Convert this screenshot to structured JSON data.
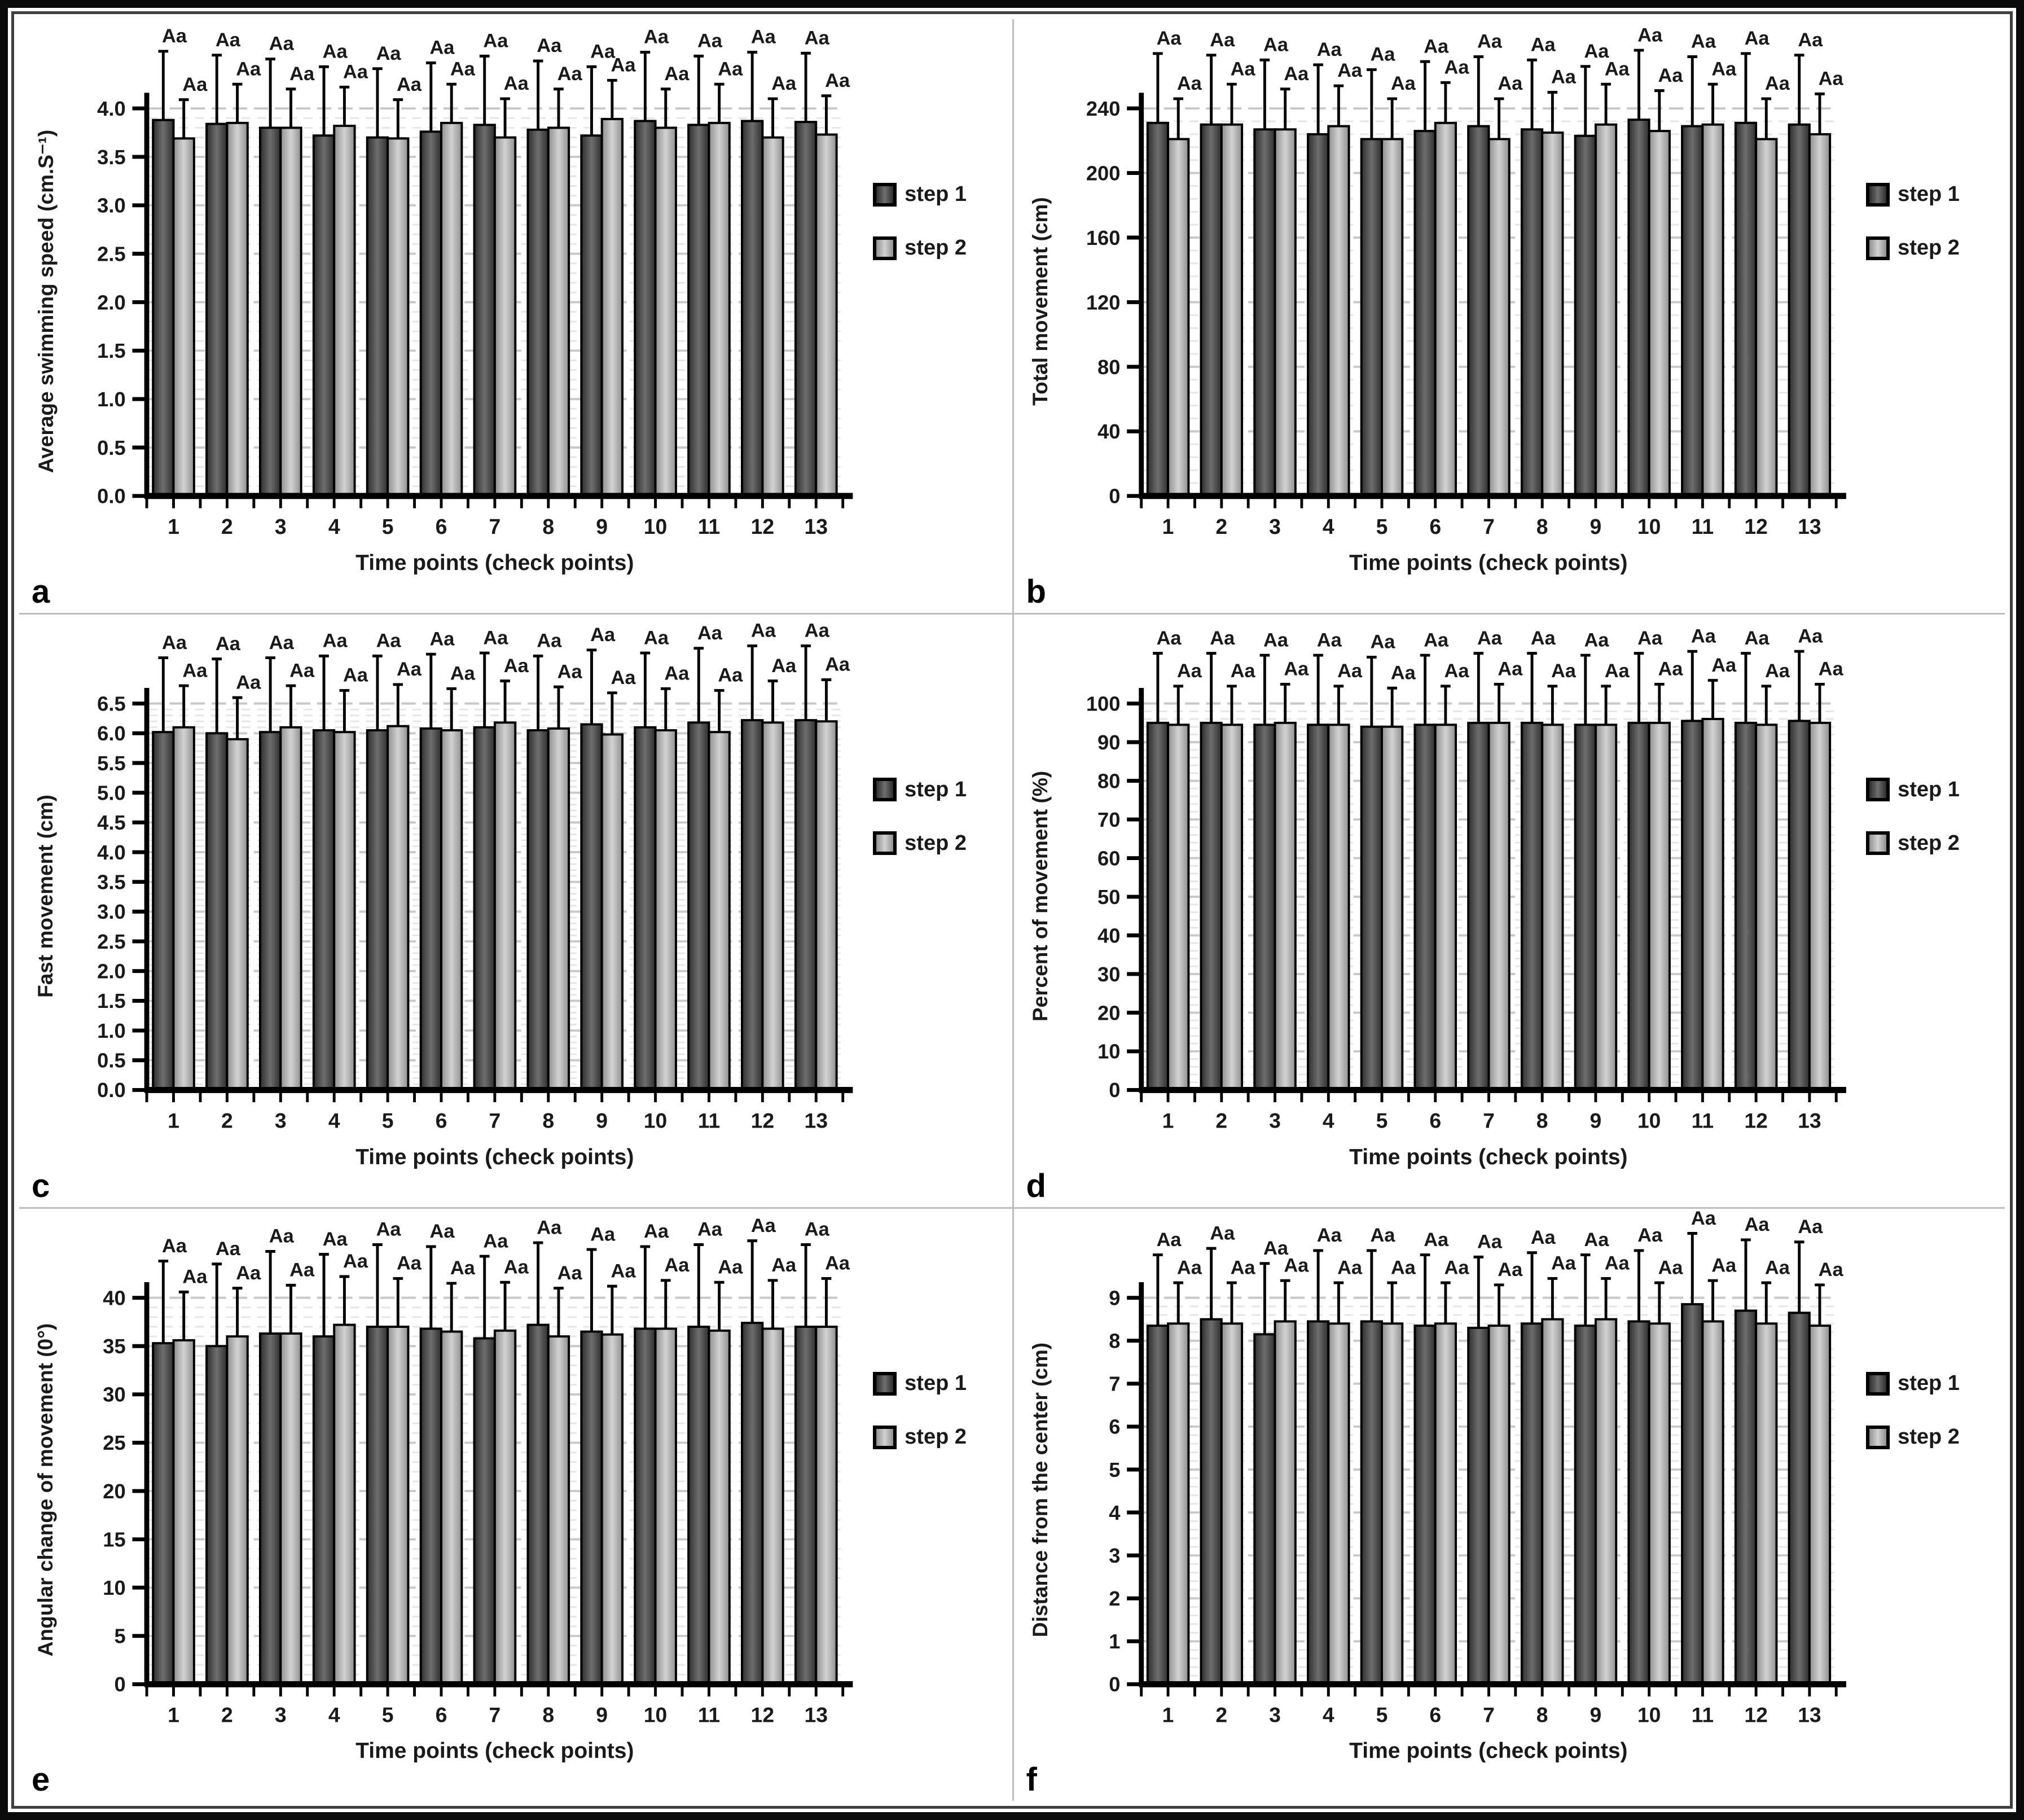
{
  "palette": {
    "bar_step1_edge": "#2e2e2e",
    "bar_step1_mid": "#6e6e6e",
    "bar_step2_edge": "#8f8f8f",
    "bar_step2_mid": "#d2d2d2",
    "bar_outline": "#000000",
    "grid_minor": "#e6e6e6",
    "grid_major": "#c9c9c9",
    "axis": "#000000",
    "error_bar": "#000000",
    "text": "#1a1a1a"
  },
  "chart_data": [
    {
      "panel_label": "a",
      "type": "bar",
      "title": "",
      "ylabel": "Average swimming speed (cm.S⁻¹)",
      "xlabel": "Time points (check points)",
      "categories": [
        "1",
        "2",
        "3",
        "4",
        "5",
        "6",
        "7",
        "8",
        "9",
        "10",
        "11",
        "12",
        "13"
      ],
      "yticks": [
        "0.0",
        "0.5",
        "1.0",
        "1.5",
        "2.0",
        "2.5",
        "3.0",
        "3.5",
        "4.0"
      ],
      "ymin": 0,
      "ymax": 4.0,
      "ytick_step": 0.5,
      "grid": true,
      "legend_position": "right",
      "series": [
        {
          "name": "step 1",
          "point_label": "Aa",
          "err": 0.71,
          "values": [
            3.88,
            3.84,
            3.8,
            3.72,
            3.7,
            3.76,
            3.83,
            3.78,
            3.72,
            3.87,
            3.83,
            3.87,
            3.86
          ]
        },
        {
          "name": "step 2",
          "point_label": "Aa",
          "err": 0.4,
          "values": [
            3.69,
            3.85,
            3.8,
            3.82,
            3.69,
            3.85,
            3.7,
            3.8,
            3.89,
            3.8,
            3.85,
            3.7,
            3.73
          ]
        }
      ]
    },
    {
      "panel_label": "b",
      "type": "bar",
      "title": "",
      "ylabel": "Total movement (cm)",
      "xlabel": "Time points (check points)",
      "categories": [
        "1",
        "2",
        "3",
        "4",
        "5",
        "6",
        "7",
        "8",
        "9",
        "10",
        "11",
        "12",
        "13"
      ],
      "yticks": [
        "0",
        "40",
        "80",
        "120",
        "160",
        "200",
        "240"
      ],
      "ymin": 0,
      "ymax": 240,
      "ytick_step": 40,
      "grid": true,
      "legend_position": "right",
      "series": [
        {
          "name": "step 1",
          "point_label": "Aa",
          "err": 43,
          "values": [
            231,
            230,
            227,
            224,
            221,
            226,
            229,
            227,
            223,
            233,
            229,
            231,
            230
          ]
        },
        {
          "name": "step 2",
          "point_label": "Aa",
          "err": 25,
          "values": [
            221,
            230,
            227,
            229,
            221,
            231,
            221,
            225,
            230,
            226,
            230,
            221,
            224
          ]
        }
      ]
    },
    {
      "panel_label": "c",
      "type": "bar",
      "title": "",
      "ylabel": "Fast movement (cm)",
      "xlabel": "Time points (check points)",
      "categories": [
        "1",
        "2",
        "3",
        "4",
        "5",
        "6",
        "7",
        "8",
        "9",
        "10",
        "11",
        "12",
        "13"
      ],
      "yticks": [
        "0.0",
        "0.5",
        "1.0",
        "1.5",
        "2.0",
        "2.5",
        "3.0",
        "3.5",
        "4.0",
        "4.5",
        "5.0",
        "5.5",
        "6.0",
        "6.5"
      ],
      "ymin": 0,
      "ymax": 6.5,
      "ytick_step": 0.5,
      "grid": true,
      "legend_position": "right",
      "series": [
        {
          "name": "step 1",
          "point_label": "Aa",
          "err": 1.25,
          "values": [
            6.02,
            6.0,
            6.02,
            6.05,
            6.05,
            6.08,
            6.1,
            6.05,
            6.15,
            6.1,
            6.18,
            6.22,
            6.22
          ]
        },
        {
          "name": "step 2",
          "point_label": "Aa",
          "err": 0.7,
          "values": [
            6.1,
            5.9,
            6.1,
            6.02,
            6.12,
            6.05,
            6.18,
            6.08,
            5.98,
            6.05,
            6.02,
            6.18,
            6.2
          ]
        }
      ]
    },
    {
      "panel_label": "d",
      "type": "bar",
      "title": "",
      "ylabel": "Percent of movement (%)",
      "xlabel": "Time points (check points)",
      "categories": [
        "1",
        "2",
        "3",
        "4",
        "5",
        "6",
        "7",
        "8",
        "9",
        "10",
        "11",
        "12",
        "13"
      ],
      "yticks": [
        "0",
        "10",
        "20",
        "30",
        "40",
        "50",
        "60",
        "70",
        "80",
        "90",
        "100"
      ],
      "ymin": 0,
      "ymax": 100,
      "ytick_step": 10,
      "grid": true,
      "legend_position": "right",
      "series": [
        {
          "name": "step 1",
          "point_label": "Aa",
          "err": 18,
          "values": [
            95,
            95,
            94.5,
            94.5,
            94,
            94.5,
            95,
            95,
            94.5,
            95,
            95.5,
            95,
            95.5
          ]
        },
        {
          "name": "step 2",
          "point_label": "Aa",
          "err": 10,
          "values": [
            94.5,
            94.5,
            95,
            94.5,
            94,
            94.5,
            95,
            94.5,
            94.5,
            95,
            96,
            94.5,
            95
          ]
        }
      ]
    },
    {
      "panel_label": "e",
      "type": "bar",
      "title": "",
      "ylabel": "Angular change of movement (0°)",
      "xlabel": "Time points (check points)",
      "categories": [
        "1",
        "2",
        "3",
        "4",
        "5",
        "6",
        "7",
        "8",
        "9",
        "10",
        "11",
        "12",
        "13"
      ],
      "yticks": [
        "0",
        "5",
        "10",
        "15",
        "20",
        "25",
        "30",
        "35",
        "40"
      ],
      "ymin": 0,
      "ymax": 40,
      "ytick_step": 5,
      "grid": true,
      "legend_position": "right",
      "series": [
        {
          "name": "step 1",
          "point_label": "Aa",
          "err": 8.5,
          "values": [
            35.3,
            35.0,
            36.3,
            36.0,
            37.0,
            36.8,
            35.8,
            37.2,
            36.5,
            36.8,
            37.0,
            37.4,
            37.0
          ]
        },
        {
          "name": "step 2",
          "point_label": "Aa",
          "err": 5.0,
          "values": [
            35.6,
            36.0,
            36.3,
            37.2,
            37.0,
            36.5,
            36.6,
            36.0,
            36.2,
            36.8,
            36.6,
            36.8,
            37.0
          ]
        }
      ]
    },
    {
      "panel_label": "f",
      "type": "bar",
      "title": "",
      "ylabel": "Distance from the center (cm)",
      "xlabel": "Time points (check points)",
      "categories": [
        "1",
        "2",
        "3",
        "4",
        "5",
        "6",
        "7",
        "8",
        "9",
        "10",
        "11",
        "12",
        "13"
      ],
      "yticks": [
        "0",
        "1",
        "2",
        "3",
        "4",
        "5",
        "6",
        "7",
        "8",
        "9"
      ],
      "ymin": 0,
      "ymax": 9,
      "ytick_step": 1,
      "grid": true,
      "legend_position": "right",
      "series": [
        {
          "name": "step 1",
          "point_label": "Aa",
          "err": 1.65,
          "values": [
            8.35,
            8.5,
            8.15,
            8.45,
            8.45,
            8.35,
            8.3,
            8.4,
            8.35,
            8.45,
            8.85,
            8.7,
            8.65
          ]
        },
        {
          "name": "step 2",
          "point_label": "Aa",
          "err": 0.95,
          "values": [
            8.4,
            8.4,
            8.45,
            8.4,
            8.4,
            8.4,
            8.35,
            8.5,
            8.5,
            8.4,
            8.45,
            8.4,
            8.35
          ]
        }
      ]
    }
  ]
}
